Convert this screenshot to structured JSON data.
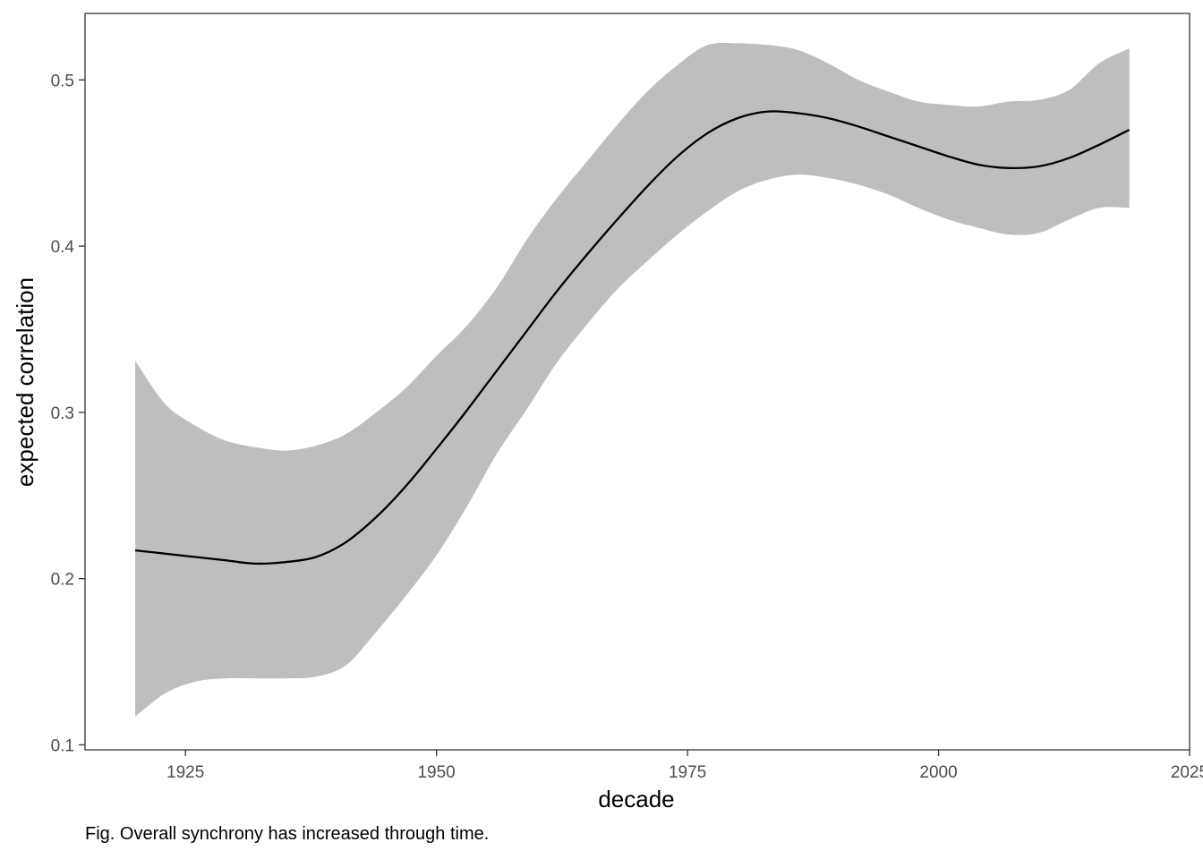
{
  "chart_data": {
    "type": "line",
    "title": "",
    "xlabel": "decade",
    "ylabel": "expected correlation",
    "xlim": [
      1915,
      2025
    ],
    "ylim": [
      0.097,
      0.54
    ],
    "x_ticks": [
      1925,
      1950,
      1975,
      2000,
      2025
    ],
    "y_ticks": [
      0.1,
      0.2,
      0.3,
      0.4,
      0.5
    ],
    "x_tick_labels": [
      "1925",
      "1950",
      "1975",
      "2000",
      "2025"
    ],
    "y_tick_labels": [
      "0.1",
      "0.2",
      "0.3",
      "0.4",
      "0.5"
    ],
    "grid": false,
    "series": [
      {
        "type": "line",
        "color": "#000000",
        "x": [
          1920,
          1923,
          1926,
          1929,
          1932,
          1935,
          1938,
          1941,
          1944,
          1947,
          1950,
          1953,
          1956,
          1959,
          1962,
          1965,
          1968,
          1971,
          1974,
          1977,
          1980,
          1983,
          1986,
          1989,
          1992,
          1995,
          1998,
          2001,
          2004,
          2007,
          2010,
          2013,
          2016,
          2019
        ],
        "y": [
          0.217,
          0.215,
          0.213,
          0.211,
          0.209,
          0.21,
          0.213,
          0.222,
          0.237,
          0.256,
          0.278,
          0.301,
          0.325,
          0.349,
          0.373,
          0.395,
          0.416,
          0.436,
          0.454,
          0.468,
          0.477,
          0.481,
          0.48,
          0.477,
          0.472,
          0.466,
          0.46,
          0.454,
          0.449,
          0.447,
          0.448,
          0.453,
          0.461,
          0.47
        ]
      },
      {
        "type": "ribbon",
        "color": "#bebebe",
        "x": [
          1920,
          1923,
          1926,
          1929,
          1932,
          1935,
          1938,
          1941,
          1944,
          1947,
          1950,
          1953,
          1956,
          1959,
          1962,
          1965,
          1968,
          1971,
          1974,
          1977,
          1980,
          1983,
          1986,
          1989,
          1992,
          1995,
          1998,
          2001,
          2004,
          2007,
          2010,
          2013,
          2016,
          2019
        ],
        "lower": [
          0.117,
          0.131,
          0.138,
          0.14,
          0.14,
          0.14,
          0.141,
          0.148,
          0.168,
          0.19,
          0.214,
          0.243,
          0.275,
          0.302,
          0.33,
          0.353,
          0.374,
          0.391,
          0.407,
          0.421,
          0.433,
          0.44,
          0.443,
          0.441,
          0.437,
          0.431,
          0.423,
          0.416,
          0.411,
          0.407,
          0.408,
          0.416,
          0.423,
          0.423
        ],
        "upper": [
          0.331,
          0.305,
          0.292,
          0.283,
          0.279,
          0.277,
          0.28,
          0.287,
          0.3,
          0.315,
          0.334,
          0.352,
          0.375,
          0.404,
          0.429,
          0.451,
          0.473,
          0.493,
          0.509,
          0.521,
          0.522,
          0.521,
          0.518,
          0.51,
          0.5,
          0.493,
          0.487,
          0.485,
          0.484,
          0.487,
          0.488,
          0.494,
          0.51,
          0.519
        ]
      }
    ]
  },
  "caption": "Fig. Overall synchrony has increased through time."
}
